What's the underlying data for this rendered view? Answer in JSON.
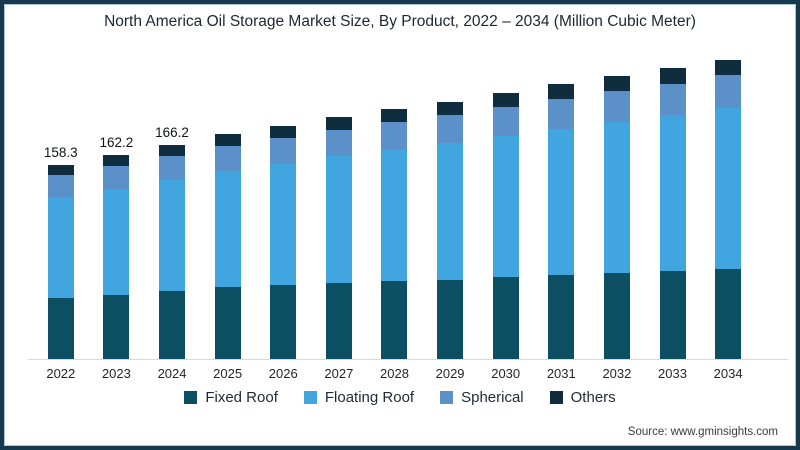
{
  "title": "North America Oil Storage Market Size, By Product, 2022 – 2034 (Million Cubic Meter)",
  "source": "Source: www.gminsights.com",
  "colors": {
    "frame_outer": "#16394E",
    "frame_inner_edge": "#A9C7DA",
    "axis_line": "#D9D9D9",
    "title_text": "#1E2631",
    "fixed_roof": "#0C4F63",
    "floating_roof": "#41A5DF",
    "spherical": "#5B90C8",
    "others": "#102C3F"
  },
  "chart_data": {
    "type": "bar",
    "stacked": true,
    "title": "North America Oil Storage Market Size, By Product, 2022 – 2034 (Million Cubic Meter)",
    "xlabel": "",
    "ylabel": "",
    "unit": "Million Cubic Meter",
    "grid": false,
    "legend_position": "bottom",
    "axis_min": 80,
    "ylim": [
      80,
      210
    ],
    "categories": [
      "2022",
      "2023",
      "2024",
      "2025",
      "2026",
      "2027",
      "2028",
      "2029",
      "2030",
      "2031",
      "2032",
      "2033",
      "2034"
    ],
    "totals": [
      158.3,
      162.2,
      166.2,
      170.5,
      173.8,
      177.4,
      180.6,
      183.6,
      187.2,
      190.6,
      193.9,
      197.0,
      200.5
    ],
    "value_labels": [
      "158.3",
      "162.2",
      "166.2",
      "",
      "",
      "",
      "",
      "",
      "",
      "",
      "",
      "",
      ""
    ],
    "series": [
      {
        "name": "Fixed Roof",
        "color": "#0C4F63",
        "values": [
          104.4,
          105.7,
          107.2,
          109.0,
          109.8,
          110.8,
          111.5,
          112.0,
          113.1,
          113.9,
          114.7,
          115.3,
          116.3
        ]
      },
      {
        "name": "Floating Roof",
        "color": "#41A5DF",
        "values": [
          40.8,
          42.8,
          44.8,
          46.8,
          48.8,
          50.8,
          52.8,
          54.8,
          56.8,
          58.8,
          60.8,
          62.8,
          64.8
        ]
      },
      {
        "name": "Spherical",
        "color": "#5B90C8",
        "values": [
          8.9,
          9.3,
          9.6,
          10.0,
          10.3,
          10.7,
          11.0,
          11.4,
          11.7,
          12.1,
          12.4,
          12.8,
          13.1
        ]
      },
      {
        "name": "Others",
        "color": "#102C3F",
        "values": [
          4.2,
          4.4,
          4.6,
          4.7,
          4.9,
          5.1,
          5.3,
          5.4,
          5.6,
          5.8,
          6.0,
          6.1,
          6.3
        ]
      }
    ]
  }
}
